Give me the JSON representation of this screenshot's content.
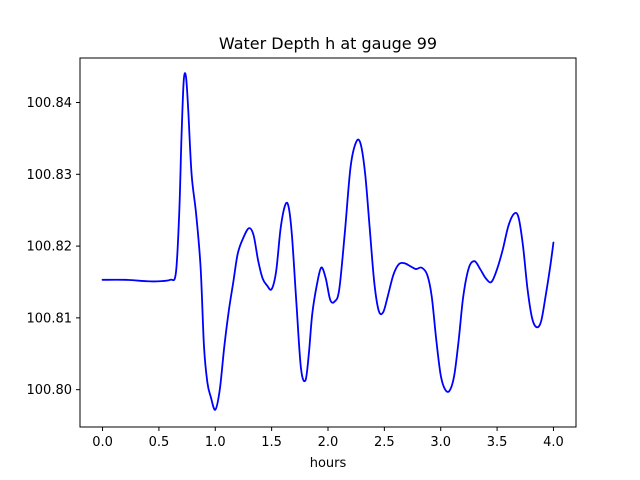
{
  "chart_data": {
    "type": "line",
    "title": "Water Depth h at gauge 99",
    "xlabel": "hours",
    "ylabel": "",
    "xlim": [
      -0.2,
      4.2
    ],
    "ylim": [
      100.7948,
      100.8462
    ],
    "xticks": [
      0.0,
      0.5,
      1.0,
      1.5,
      2.0,
      2.5,
      3.0,
      3.5,
      4.0
    ],
    "xtick_labels": [
      "0.0",
      "0.5",
      "1.0",
      "1.5",
      "2.0",
      "2.5",
      "3.0",
      "3.5",
      "4.0"
    ],
    "yticks": [
      100.8,
      100.81,
      100.82,
      100.83,
      100.84
    ],
    "ytick_labels": [
      "100.80",
      "100.81",
      "100.82",
      "100.83",
      "100.84"
    ],
    "grid": false,
    "color": "#0000ff",
    "series": [
      {
        "x": [
          0.0,
          0.2,
          0.4,
          0.5,
          0.6,
          0.65,
          0.68,
          0.7,
          0.72,
          0.74,
          0.76,
          0.79,
          0.83,
          0.87,
          0.9,
          0.93,
          0.96,
          1.0,
          1.04,
          1.08,
          1.12,
          1.16,
          1.2,
          1.25,
          1.3,
          1.34,
          1.38,
          1.42,
          1.46,
          1.5,
          1.54,
          1.58,
          1.62,
          1.65,
          1.68,
          1.72,
          1.76,
          1.8,
          1.83,
          1.86,
          1.9,
          1.94,
          1.98,
          2.02,
          2.06,
          2.1,
          2.15,
          2.2,
          2.25,
          2.29,
          2.33,
          2.37,
          2.41,
          2.45,
          2.49,
          2.53,
          2.58,
          2.63,
          2.68,
          2.73,
          2.78,
          2.83,
          2.88,
          2.92,
          2.96,
          3.0,
          3.04,
          3.08,
          3.12,
          3.16,
          3.2,
          3.25,
          3.3,
          3.35,
          3.4,
          3.45,
          3.5,
          3.55,
          3.6,
          3.65,
          3.69,
          3.73,
          3.77,
          3.81,
          3.85,
          3.89,
          3.93,
          3.97,
          4.0
        ],
        "y": [
          100.8153,
          100.8153,
          100.8151,
          100.8151,
          100.8153,
          100.8162,
          100.8245,
          100.835,
          100.843,
          100.8436,
          100.839,
          100.83,
          100.8245,
          100.817,
          100.806,
          100.801,
          100.799,
          100.7972,
          100.8,
          100.806,
          100.811,
          100.815,
          100.819,
          100.8212,
          100.8225,
          100.8215,
          100.818,
          100.8155,
          100.8145,
          100.814,
          100.8165,
          100.8225,
          100.8257,
          100.8255,
          100.8215,
          100.812,
          100.803,
          100.8013,
          100.805,
          100.8105,
          100.8145,
          100.817,
          100.8155,
          100.8125,
          100.8123,
          100.814,
          100.822,
          100.831,
          100.8345,
          100.8342,
          100.83,
          100.8225,
          100.815,
          100.811,
          100.8108,
          100.813,
          100.816,
          100.8175,
          100.8176,
          100.8172,
          100.8168,
          100.817,
          100.816,
          100.813,
          100.807,
          100.802,
          100.8,
          100.7999,
          100.802,
          100.807,
          100.813,
          100.817,
          100.8179,
          100.8168,
          100.8155,
          100.815,
          100.8168,
          100.8195,
          100.8228,
          100.8245,
          100.824,
          100.82,
          100.814,
          100.81,
          100.8087,
          100.8095,
          100.813,
          100.817,
          100.8205
        ]
      }
    ]
  }
}
